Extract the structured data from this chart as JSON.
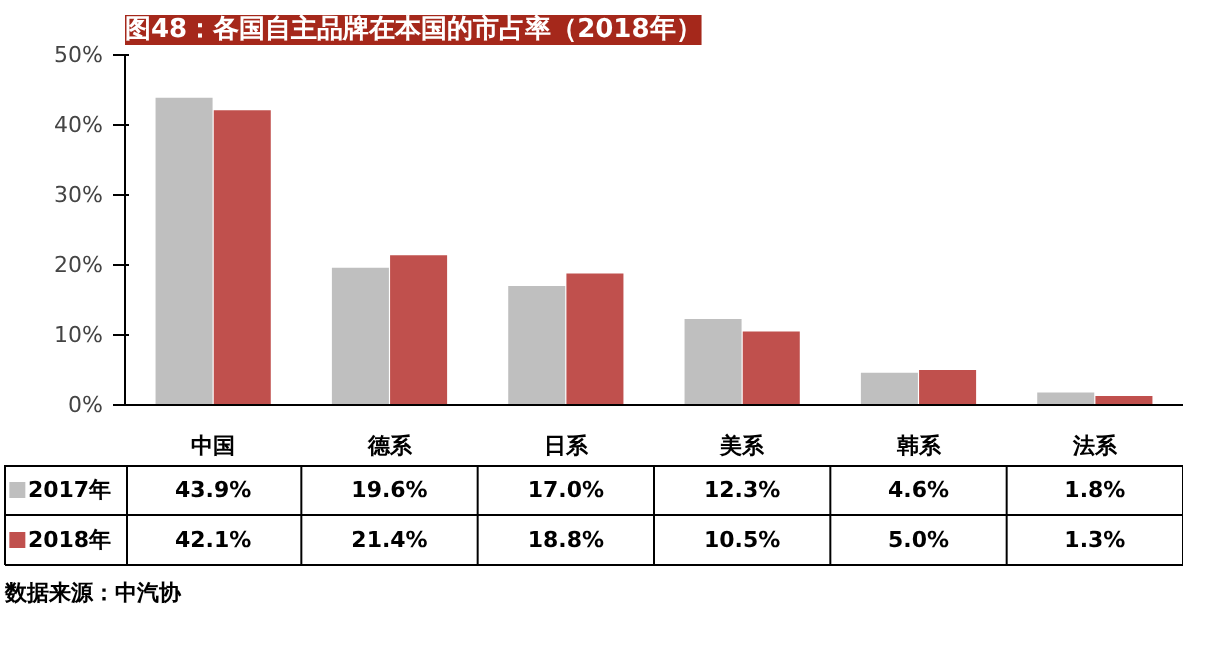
{
  "chart_data": {
    "type": "bar",
    "title": "图48：各国自主品牌在本国的市占率（2018年）",
    "categories": [
      "中国",
      "德系",
      "日系",
      "美系",
      "韩系",
      "法系"
    ],
    "series": [
      {
        "name": "2017年",
        "color": "#bfbfbf",
        "values": [
          43.9,
          19.6,
          17.0,
          12.3,
          4.6,
          1.8
        ],
        "value_labels": [
          "43.9%",
          "19.6%",
          "17.0%",
          "12.3%",
          "4.6%",
          "1.8%"
        ]
      },
      {
        "name": "2018年",
        "color": "#c0504d",
        "values": [
          42.1,
          21.4,
          18.8,
          10.5,
          5.0,
          1.3
        ],
        "value_labels": [
          "42.1%",
          "21.4%",
          "18.8%",
          "10.5%",
          "5.0%",
          "1.3%"
        ]
      }
    ],
    "ylim": [
      0,
      50
    ],
    "yticks": [
      {
        "value": 0,
        "label": "0%"
      },
      {
        "value": 10,
        "label": "10%"
      },
      {
        "value": 20,
        "label": "20%"
      },
      {
        "value": 30,
        "label": "30%"
      },
      {
        "value": 40,
        "label": "40%"
      },
      {
        "value": 50,
        "label": "50%"
      }
    ],
    "grid": false,
    "legend": "bottom",
    "annotations": [
      "数据来源：中汽协"
    ]
  }
}
